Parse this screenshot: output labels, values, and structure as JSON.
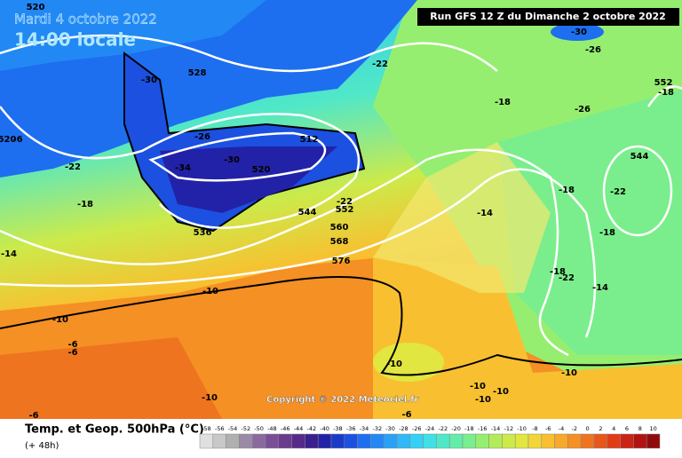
{
  "header": {
    "date": "Mardi 4 octobre 2022",
    "time": "14:00 locale",
    "run": "Run GFS 12 Z du Dimanche 2 octobre 2022"
  },
  "copyright": "Copyright © 2022 Meteociel.fr",
  "footer": {
    "title": "Temp. et Geop. 500hPa (°C)",
    "lead": "(+ 48h)"
  },
  "geopotential_labels": [
    520,
    528,
    512,
    520,
    536,
    544,
    552,
    560,
    568,
    576,
    552,
    544,
    520
  ],
  "temperature_labels": [
    -30,
    -26,
    -34,
    -30,
    -22,
    -30,
    -26,
    -18,
    -26,
    -22,
    -18,
    -14,
    -10,
    -10,
    -6,
    -6,
    -22,
    -14,
    -18,
    -22,
    -18,
    -18,
    -22,
    -14,
    -10,
    -10,
    -10,
    -10,
    -10,
    -10,
    -6,
    -6,
    -18,
    -6
  ],
  "scale": {
    "values": [
      -58,
      -56,
      -54,
      -52,
      -50,
      -48,
      -46,
      -44,
      -42,
      -40,
      -38,
      -36,
      -34,
      -32,
      -30,
      -28,
      -26,
      -24,
      -22,
      -20,
      -18,
      -16,
      -14,
      -12,
      -10,
      -8,
      -6,
      -4,
      -2,
      0,
      2,
      4,
      6,
      8,
      10
    ],
    "colors": [
      "#e0e0e0",
      "#c8c8c8",
      "#b0b0b0",
      "#9a8aa6",
      "#8a6a9e",
      "#7a4e96",
      "#6a3a8e",
      "#562a8a",
      "#3a1e90",
      "#2222a8",
      "#1a3ac8",
      "#1c50e0",
      "#1e6ef0",
      "#2288f4",
      "#2aa0f6",
      "#30b8f8",
      "#36d0f6",
      "#40e0e6",
      "#50e8c8",
      "#64ecaa",
      "#7aee8c",
      "#96ee70",
      "#b2ec5a",
      "#ccea4a",
      "#e2e640",
      "#f2d638",
      "#f8c030",
      "#f8a82a",
      "#f49024",
      "#ee7420",
      "#e8561c",
      "#e03c18",
      "#cc2414",
      "#b01410",
      "#900c0c"
    ]
  }
}
